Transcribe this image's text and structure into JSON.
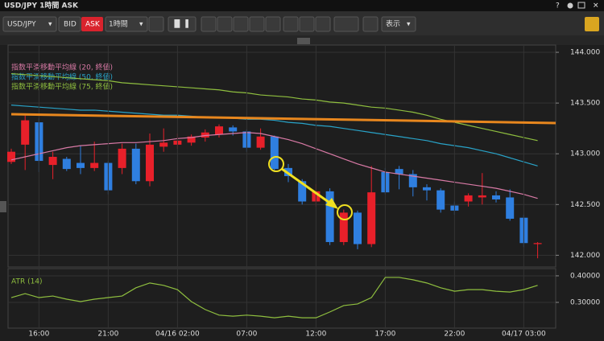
{
  "window": {
    "title": "USD/JPY 1時間 ASK",
    "help": "?"
  },
  "toolbar": {
    "symbol": "USD/JPY",
    "bid": "BID",
    "ask": "ASK",
    "timeframe": "1時間",
    "display": "表示"
  },
  "chart_data": [
    {
      "type": "candlestick",
      "categories": [
        null,
        null,
        "16:00",
        null,
        null,
        null,
        null,
        "21:00",
        null,
        null,
        null,
        null,
        "04/16 02:00",
        null,
        null,
        null,
        null,
        "07:00",
        null,
        null,
        null,
        null,
        "12:00",
        null,
        null,
        null,
        null,
        "17:00",
        null,
        null,
        null,
        null,
        "22:00",
        null,
        null,
        null,
        null,
        "04/17 03:00",
        null
      ],
      "open": [
        142.92,
        143.09,
        143.31,
        142.89,
        142.95,
        142.91,
        142.86,
        142.91,
        142.86,
        143.05,
        142.73,
        143.07,
        143.09,
        143.11,
        143.16,
        143.19,
        143.26,
        143.22,
        143.06,
        143.17,
        142.86,
        142.73,
        142.53,
        142.63,
        142.13,
        142.42,
        142.11,
        142.82,
        142.85,
        142.8,
        142.67,
        142.64,
        142.49,
        142.53,
        142.57,
        142.59,
        142.57,
        142.37,
        142.11
      ],
      "high": [
        143.05,
        143.38,
        143.35,
        143.02,
        142.97,
        143.08,
        143.12,
        142.93,
        143.1,
        143.1,
        143.2,
        143.25,
        143.2,
        143.19,
        143.24,
        143.29,
        143.28,
        143.24,
        143.25,
        143.18,
        142.9,
        142.75,
        142.7,
        142.66,
        142.45,
        142.44,
        142.88,
        142.86,
        142.88,
        142.84,
        142.7,
        142.66,
        142.53,
        142.61,
        142.81,
        142.63,
        142.65,
        142.4,
        142.13
      ],
      "low": [
        142.9,
        142.84,
        142.82,
        142.75,
        142.83,
        142.8,
        142.83,
        142.6,
        142.8,
        142.7,
        142.68,
        143.02,
        143.05,
        143.08,
        143.12,
        143.16,
        143.18,
        143.02,
        143.04,
        142.82,
        142.72,
        142.5,
        142.48,
        142.1,
        142.1,
        142.06,
        142.08,
        142.6,
        142.65,
        142.58,
        142.54,
        142.42,
        142.4,
        142.48,
        142.5,
        142.52,
        142.34,
        142.08,
        141.97
      ],
      "close": [
        143.02,
        143.33,
        142.93,
        142.97,
        142.85,
        142.86,
        142.91,
        142.64,
        143.05,
        142.73,
        143.09,
        143.11,
        143.13,
        143.17,
        143.21,
        143.27,
        143.22,
        143.06,
        143.17,
        142.85,
        142.78,
        142.53,
        142.63,
        142.13,
        142.42,
        142.11,
        142.62,
        142.62,
        142.8,
        142.67,
        142.64,
        142.45,
        142.44,
        142.59,
        142.59,
        142.55,
        142.36,
        142.12,
        142.12
      ],
      "up_color": "#e8202a",
      "down_color": "#2f7fe0",
      "overlays": [
        {
          "name": "指数平滑移動平均線 (20, 終値)",
          "color": "#d97aa6",
          "values": [
            142.94,
            142.97,
            143.0,
            143.03,
            143.06,
            143.08,
            143.09,
            143.1,
            143.11,
            143.11,
            143.12,
            143.13,
            143.15,
            143.16,
            143.18,
            143.19,
            143.2,
            143.21,
            143.2,
            143.17,
            143.14,
            143.1,
            143.05,
            143.0,
            142.95,
            142.9,
            142.86,
            142.82,
            142.8,
            142.78,
            142.76,
            142.74,
            142.72,
            142.7,
            142.68,
            142.66,
            142.63,
            142.6,
            142.56
          ]
        },
        {
          "name": "指数平滑移動平均線 (50, 終値)",
          "color": "#29a3c8",
          "values": [
            143.48,
            143.47,
            143.46,
            143.45,
            143.44,
            143.43,
            143.43,
            143.42,
            143.41,
            143.4,
            143.39,
            143.38,
            143.38,
            143.37,
            143.36,
            143.36,
            143.35,
            143.34,
            143.34,
            143.33,
            143.31,
            143.3,
            143.28,
            143.27,
            143.25,
            143.23,
            143.21,
            143.19,
            143.17,
            143.15,
            143.13,
            143.1,
            143.08,
            143.06,
            143.03,
            143.0,
            142.96,
            142.92,
            142.88
          ]
        },
        {
          "name": "指数平滑移動平均線 (75, 終値)",
          "color": "#8fbf3f",
          "values": [
            143.79,
            143.78,
            143.77,
            143.76,
            143.75,
            143.74,
            143.73,
            143.72,
            143.7,
            143.69,
            143.68,
            143.67,
            143.66,
            143.65,
            143.64,
            143.63,
            143.61,
            143.6,
            143.58,
            143.57,
            143.56,
            143.54,
            143.53,
            143.51,
            143.5,
            143.48,
            143.46,
            143.45,
            143.43,
            143.41,
            143.38,
            143.34,
            143.31,
            143.28,
            143.25,
            143.22,
            143.19,
            143.16,
            143.13
          ]
        }
      ],
      "ylim": [
        141.9,
        144.04
      ],
      "yticks": [
        {
          "value": 144,
          "label": "144.000"
        },
        {
          "value": 143.5,
          "label": "143.500"
        },
        {
          "value": 143,
          "label": "143.000"
        },
        {
          "value": 142.5,
          "label": "142.500"
        },
        {
          "value": 142,
          "label": "142.000"
        }
      ],
      "grid": true
    },
    {
      "type": "line",
      "title": "ATR (14)",
      "color": "#8fbf3f",
      "values": [
        0.318,
        0.333,
        0.318,
        0.324,
        0.312,
        0.303,
        0.312,
        0.318,
        0.324,
        0.355,
        0.373,
        0.364,
        0.348,
        0.303,
        0.273,
        0.252,
        0.248,
        0.252,
        0.248,
        0.242,
        0.248,
        0.242,
        0.242,
        0.264,
        0.288,
        0.294,
        0.318,
        0.394,
        0.394,
        0.385,
        0.373,
        0.355,
        0.342,
        0.348,
        0.348,
        0.342,
        0.339,
        0.348,
        0.364
      ],
      "ylim": [
        0.197,
        0.418
      ],
      "yticks": [
        {
          "value": 0.4,
          "label": "0.40000"
        },
        {
          "value": 0.3,
          "label": "0.30000"
        }
      ],
      "grid": true
    }
  ]
}
